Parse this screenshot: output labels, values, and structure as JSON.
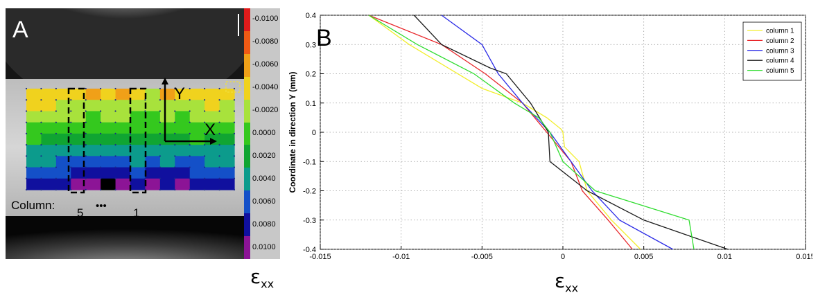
{
  "panel_a": {
    "letter": "A",
    "axis_y_label": "Y",
    "axis_x_label": "X",
    "column_caption": "Column:",
    "column_first": "5",
    "column_ellipsis": "•••",
    "column_last": "1",
    "quantity_symbol": "ε",
    "quantity_subscript": "xx",
    "contour_rows": [
      [
        3,
        3,
        3,
        3,
        2,
        3,
        2,
        3,
        4,
        2,
        3,
        3,
        3,
        3
      ],
      [
        3,
        3,
        4,
        4,
        4,
        4,
        4,
        4,
        4,
        4,
        4,
        4,
        3,
        4
      ],
      [
        4,
        4,
        4,
        4,
        5,
        4,
        4,
        5,
        5,
        4,
        5,
        4,
        4,
        4
      ],
      [
        5,
        5,
        5,
        5,
        5,
        5,
        5,
        5,
        5,
        5,
        5,
        5,
        5,
        5
      ],
      [
        5,
        6,
        6,
        6,
        6,
        6,
        6,
        6,
        6,
        6,
        6,
        5,
        6,
        6
      ],
      [
        7,
        7,
        7,
        7,
        7,
        7,
        7,
        7,
        7,
        7,
        7,
        7,
        7,
        7
      ],
      [
        7,
        7,
        8,
        8,
        8,
        8,
        8,
        7,
        8,
        7,
        8,
        8,
        7,
        7
      ],
      [
        8,
        8,
        8,
        9,
        9,
        9,
        9,
        8,
        9,
        9,
        9,
        8,
        8,
        8
      ],
      [
        9,
        9,
        9,
        10,
        10,
        11,
        10,
        9,
        10,
        9,
        10,
        9,
        9,
        9
      ]
    ]
  },
  "colorbar": {
    "labels": [
      "-0.0100",
      "-0.0080",
      "-0.0060",
      "-0.0040",
      "-0.0020",
      "0.0000",
      "0.0020",
      "0.0040",
      "0.0060",
      "0.0080",
      "0.0100"
    ],
    "colors": [
      "#e11b1b",
      "#f05a14",
      "#f0a018",
      "#f0d21e",
      "#a8e23c",
      "#34c81e",
      "#10a532",
      "#0c9b8c",
      "#1450c8",
      "#10109e",
      "#8c1496"
    ]
  },
  "panel_b": {
    "letter": "B",
    "quantity_symbol": "ε",
    "quantity_subscript": "xx"
  },
  "chart_data": {
    "type": "line",
    "title": "",
    "xlabel": "εxx",
    "ylabel": "Coordinate in direction Y (mm)",
    "xlim": [
      -0.015,
      0.015
    ],
    "ylim": [
      -0.4,
      0.4
    ],
    "x_ticks": [
      "-0.015",
      "-0.01",
      "-0.005",
      "0",
      "0.005",
      "0.01",
      "0.015"
    ],
    "y_ticks": [
      "0.4",
      "0.3",
      "0.2",
      "0.1",
      "0",
      "-0.1",
      "-0.2",
      "-0.3",
      "-0.4"
    ],
    "grid": true,
    "legend_position": "top-right",
    "series": [
      {
        "name": "column 1",
        "color": "#f2ee2c",
        "points": [
          [
            -0.012,
            0.4
          ],
          [
            -0.0095,
            0.3
          ],
          [
            -0.005,
            0.15
          ],
          [
            -0.0025,
            0.1
          ],
          [
            -0.001,
            0.05
          ],
          [
            -0.0001,
            0.01
          ],
          [
            0.0,
            0.0
          ],
          [
            0.0001,
            -0.05
          ],
          [
            0.001,
            -0.1
          ],
          [
            0.0015,
            -0.2
          ],
          [
            0.003,
            -0.3
          ],
          [
            0.0048,
            -0.4
          ]
        ]
      },
      {
        "name": "column 2",
        "color": "#e8262a",
        "points": [
          [
            -0.012,
            0.4
          ],
          [
            -0.0075,
            0.3
          ],
          [
            -0.0048,
            0.2
          ],
          [
            -0.0025,
            0.1
          ],
          [
            -0.001,
            0.0
          ],
          [
            0.0005,
            -0.1
          ],
          [
            0.0012,
            -0.2
          ],
          [
            0.0028,
            -0.3
          ],
          [
            0.0043,
            -0.4
          ]
        ]
      },
      {
        "name": "column 3",
        "color": "#2a2ae6",
        "points": [
          [
            -0.0075,
            0.4
          ],
          [
            -0.005,
            0.3
          ],
          [
            -0.004,
            0.2
          ],
          [
            -0.0025,
            0.1
          ],
          [
            -0.0008,
            0.0
          ],
          [
            0.0005,
            -0.1
          ],
          [
            0.0018,
            -0.2
          ],
          [
            0.0035,
            -0.3
          ],
          [
            0.0068,
            -0.4
          ]
        ]
      },
      {
        "name": "column 4",
        "color": "#1a1a1a",
        "points": [
          [
            -0.0092,
            0.4
          ],
          [
            -0.0075,
            0.3
          ],
          [
            -0.0045,
            0.22
          ],
          [
            -0.0035,
            0.2
          ],
          [
            -0.002,
            0.1
          ],
          [
            -0.0009,
            0.0
          ],
          [
            -0.0008,
            -0.1
          ],
          [
            0.0015,
            -0.2
          ],
          [
            0.005,
            -0.3
          ],
          [
            0.0102,
            -0.4
          ]
        ]
      },
      {
        "name": "column 5",
        "color": "#30dc30",
        "points": [
          [
            -0.012,
            0.4
          ],
          [
            -0.009,
            0.3
          ],
          [
            -0.0055,
            0.2
          ],
          [
            -0.003,
            0.1
          ],
          [
            -0.0015,
            0.05
          ],
          [
            -0.0008,
            0.0
          ],
          [
            0.0,
            -0.1
          ],
          [
            0.002,
            -0.2
          ],
          [
            0.0078,
            -0.3
          ],
          [
            0.0081,
            -0.4
          ]
        ]
      }
    ]
  }
}
